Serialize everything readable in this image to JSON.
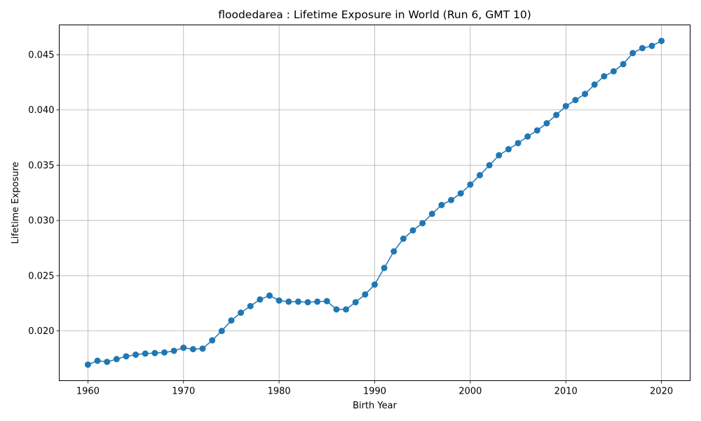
{
  "chart_data": {
    "type": "line",
    "title": "floodedarea : Lifetime Exposure in World (Run 6, GMT 10)",
    "xlabel": "Birth Year",
    "ylabel": "Lifetime Exposure",
    "xlim": [
      1957,
      2023
    ],
    "ylim": [
      0.0155,
      0.0477
    ],
    "xticks": [
      1960,
      1970,
      1980,
      1990,
      2000,
      2010,
      2020
    ],
    "yticks": [
      0.02,
      0.025,
      0.03,
      0.035,
      0.04,
      0.045
    ],
    "ytick_labels": [
      "0.020",
      "0.025",
      "0.030",
      "0.035",
      "0.040",
      "0.045"
    ],
    "grid": true,
    "color": "#1f77b4",
    "marker": "circle",
    "x": [
      1960,
      1961,
      1962,
      1963,
      1964,
      1965,
      1966,
      1967,
      1968,
      1969,
      1970,
      1971,
      1972,
      1973,
      1974,
      1975,
      1976,
      1977,
      1978,
      1979,
      1980,
      1981,
      1982,
      1983,
      1984,
      1985,
      1986,
      1987,
      1988,
      1989,
      1990,
      1991,
      1992,
      1993,
      1994,
      1995,
      1996,
      1997,
      1998,
      1999,
      2000,
      2001,
      2002,
      2003,
      2004,
      2005,
      2006,
      2007,
      2008,
      2009,
      2010,
      2011,
      2012,
      2013,
      2014,
      2015,
      2016,
      2017,
      2018,
      2019,
      2020
    ],
    "y": [
      0.01695,
      0.0173,
      0.0172,
      0.01745,
      0.0177,
      0.01785,
      0.01795,
      0.018,
      0.01805,
      0.0182,
      0.01848,
      0.01835,
      0.0184,
      0.01915,
      0.02,
      0.02095,
      0.02165,
      0.02225,
      0.02285,
      0.0232,
      0.02275,
      0.02265,
      0.02265,
      0.0226,
      0.02265,
      0.0227,
      0.02195,
      0.02195,
      0.0226,
      0.0233,
      0.0242,
      0.0257,
      0.0272,
      0.02835,
      0.0291,
      0.02975,
      0.0306,
      0.0314,
      0.03185,
      0.03245,
      0.03325,
      0.0341,
      0.035,
      0.0359,
      0.03645,
      0.037,
      0.0376,
      0.03815,
      0.0388,
      0.03955,
      0.04035,
      0.0409,
      0.04145,
      0.0423,
      0.04305,
      0.0435,
      0.04415,
      0.04515,
      0.0456,
      0.0458,
      0.04625
    ]
  }
}
